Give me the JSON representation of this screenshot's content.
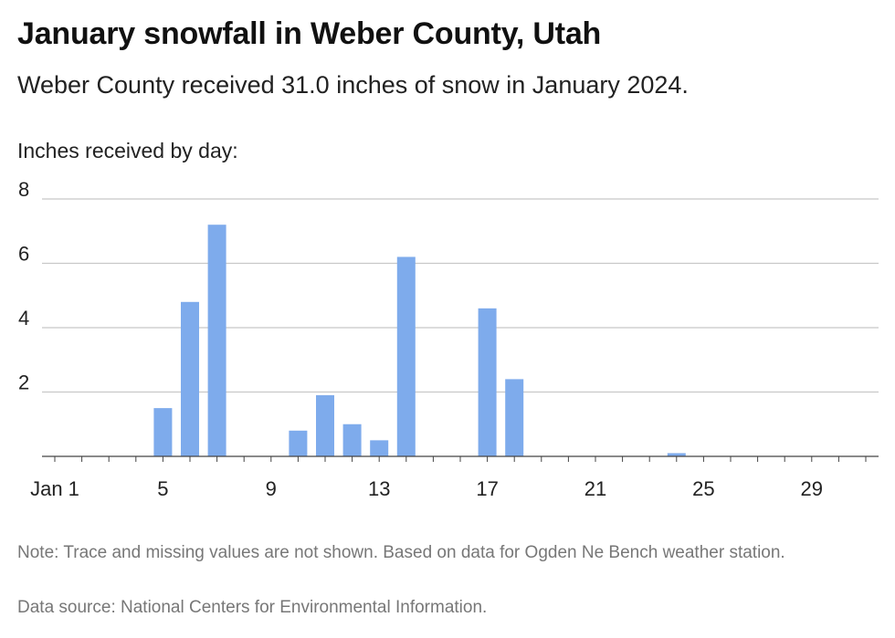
{
  "header": {
    "title": "January snowfall in Weber County, Utah",
    "subtitle": "Weber County received 31.0 inches of snow in January 2024.",
    "axis_caption": "Inches received by day:"
  },
  "footer": {
    "note": "Note: Trace and missing values are not shown. Based on data for Ogden Ne Bench weather station.",
    "source": "Data source: National Centers for Environmental Information."
  },
  "colors": {
    "bar": "#7eabec",
    "grid": "#c8c8c8",
    "axis": "#444444"
  },
  "chart_data": {
    "type": "bar",
    "title": "January snowfall in Weber County, Utah",
    "ylabel": "Inches received by day:",
    "xlabel": "",
    "ylim": [
      0,
      8
    ],
    "yticks": [
      2,
      4,
      6,
      8
    ],
    "xticks": [
      {
        "day": 1,
        "label": "Jan 1"
      },
      {
        "day": 5,
        "label": "5"
      },
      {
        "day": 9,
        "label": "9"
      },
      {
        "day": 13,
        "label": "13"
      },
      {
        "day": 17,
        "label": "17"
      },
      {
        "day": 21,
        "label": "21"
      },
      {
        "day": 25,
        "label": "25"
      },
      {
        "day": 29,
        "label": "29"
      }
    ],
    "days": [
      1,
      2,
      3,
      4,
      5,
      6,
      7,
      8,
      9,
      10,
      11,
      12,
      13,
      14,
      15,
      16,
      17,
      18,
      19,
      20,
      21,
      22,
      23,
      24,
      25,
      26,
      27,
      28,
      29,
      30,
      31
    ],
    "values": [
      0,
      0,
      0,
      0,
      1.5,
      4.8,
      7.2,
      0,
      0,
      0.8,
      1.9,
      1.0,
      0.5,
      6.2,
      0,
      0,
      4.6,
      2.4,
      0,
      0,
      0,
      0,
      0,
      0.1,
      0,
      0,
      0,
      0,
      0,
      0,
      0
    ],
    "grid": true,
    "legend": "none"
  }
}
